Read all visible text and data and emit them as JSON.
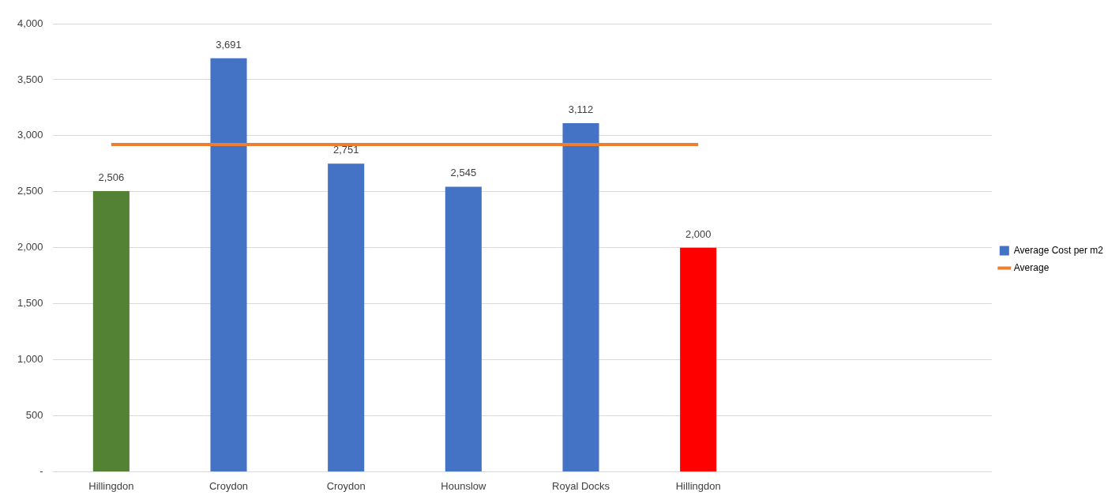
{
  "chart_data": {
    "type": "bar",
    "categories": [
      "Hillingdon",
      "Croydon",
      "Croydon",
      "Hounslow",
      "Royal Docks",
      "Hillingdon",
      null,
      null
    ],
    "series": [
      {
        "name": "Average Cost per m2",
        "color": "#4472c4",
        "colors": [
          "#548235",
          "#4472c4",
          "#4472c4",
          "#4472c4",
          "#4472c4",
          "#ff0000",
          null,
          null
        ],
        "values": [
          2506,
          3691,
          2751,
          2545,
          3112,
          2000,
          null,
          null
        ],
        "value_labels": [
          "2,506",
          "3,691",
          "2,751",
          "2,545",
          "3,112",
          "2,000",
          null,
          null
        ]
      },
      {
        "name": "Average",
        "type": "line",
        "color": "#ed7d31",
        "values": [
          2921,
          2921,
          2921,
          2921,
          2921,
          2921,
          null,
          null
        ]
      }
    ],
    "ylim": [
      0,
      4000
    ],
    "yticks": [
      {
        "value": 0,
        "label": "-"
      },
      {
        "value": 500,
        "label": "500"
      },
      {
        "value": 1000,
        "label": "1,000"
      },
      {
        "value": 1500,
        "label": "1,500"
      },
      {
        "value": 2000,
        "label": "2,000"
      },
      {
        "value": 2500,
        "label": "2,500"
      },
      {
        "value": 3000,
        "label": "3,000"
      },
      {
        "value": 3500,
        "label": "3,500"
      },
      {
        "value": 4000,
        "label": "4,000"
      }
    ],
    "grid": "y",
    "legend": "right",
    "marker": "none"
  }
}
